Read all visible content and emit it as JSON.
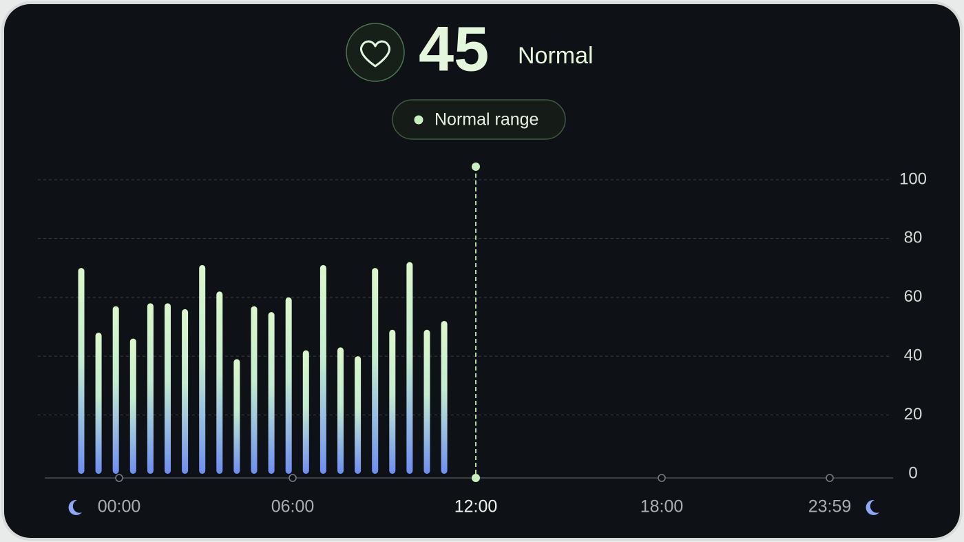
{
  "header": {
    "value": 45,
    "status": "Normal",
    "range_label": "Normal range"
  },
  "chart_data": {
    "type": "bar",
    "categories": [
      null,
      null,
      null,
      null,
      null,
      null,
      null,
      null,
      null,
      null,
      null,
      null,
      null,
      null,
      null,
      null,
      null,
      null,
      null,
      null,
      null,
      null
    ],
    "values": [
      70,
      48,
      57,
      46,
      58,
      58,
      56,
      71,
      62,
      39,
      57,
      55,
      60,
      42,
      71,
      43,
      40,
      70,
      49,
      72,
      49,
      52
    ],
    "ylim": [
      0,
      100
    ],
    "yticks": [
      0,
      20,
      40,
      60,
      80,
      100
    ],
    "grid": true,
    "xtick_labels": [
      "00:00",
      "06:00",
      "12:00",
      "18:00",
      "23:59"
    ],
    "color_top": "#dcf7cc",
    "color_bottom": "#6e8ef0"
  }
}
